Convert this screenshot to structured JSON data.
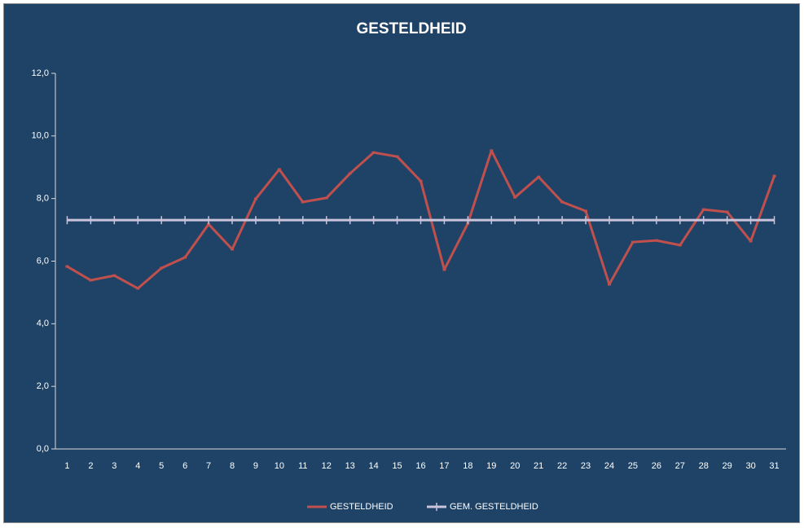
{
  "chart_data": {
    "type": "line",
    "title": "GESTELDHEID",
    "categories": [
      "1",
      "2",
      "3",
      "4",
      "5",
      "6",
      "7",
      "8",
      "9",
      "10",
      "11",
      "12",
      "13",
      "14",
      "15",
      "16",
      "17",
      "18",
      "19",
      "20",
      "21",
      "22",
      "23",
      "24",
      "25",
      "26",
      "27",
      "28",
      "29",
      "30",
      "31"
    ],
    "series": [
      {
        "name": "GESTELDHEID",
        "color": "#c0504d",
        "values": [
          5.83,
          5.39,
          5.54,
          5.13,
          5.78,
          6.12,
          7.18,
          6.38,
          7.99,
          8.93,
          7.89,
          8.02,
          8.8,
          9.47,
          9.34,
          8.56,
          5.73,
          7.21,
          9.53,
          8.04,
          8.69,
          7.89,
          7.6,
          5.26,
          6.61,
          6.66,
          6.51,
          7.65,
          7.57,
          6.64,
          8.72
        ]
      },
      {
        "name": "GEM. GESTELDHEID",
        "color": "#c9c3dc",
        "values": [
          7.31,
          7.31,
          7.31,
          7.31,
          7.31,
          7.31,
          7.31,
          7.31,
          7.31,
          7.31,
          7.31,
          7.31,
          7.31,
          7.31,
          7.31,
          7.31,
          7.31,
          7.31,
          7.31,
          7.31,
          7.31,
          7.31,
          7.31,
          7.31,
          7.31,
          7.31,
          7.31,
          7.31,
          7.31,
          7.31,
          7.31
        ]
      }
    ],
    "ylim": [
      0,
      12
    ],
    "yticks": [
      {
        "value": 0,
        "label": "0,0"
      },
      {
        "value": 2,
        "label": "2,0"
      },
      {
        "value": 4,
        "label": "4,0"
      },
      {
        "value": 6,
        "label": "6,0"
      },
      {
        "value": 8,
        "label": "8,0"
      },
      {
        "value": 10,
        "label": "10,0"
      },
      {
        "value": 12,
        "label": "12,0"
      }
    ],
    "legend": "bottom"
  }
}
